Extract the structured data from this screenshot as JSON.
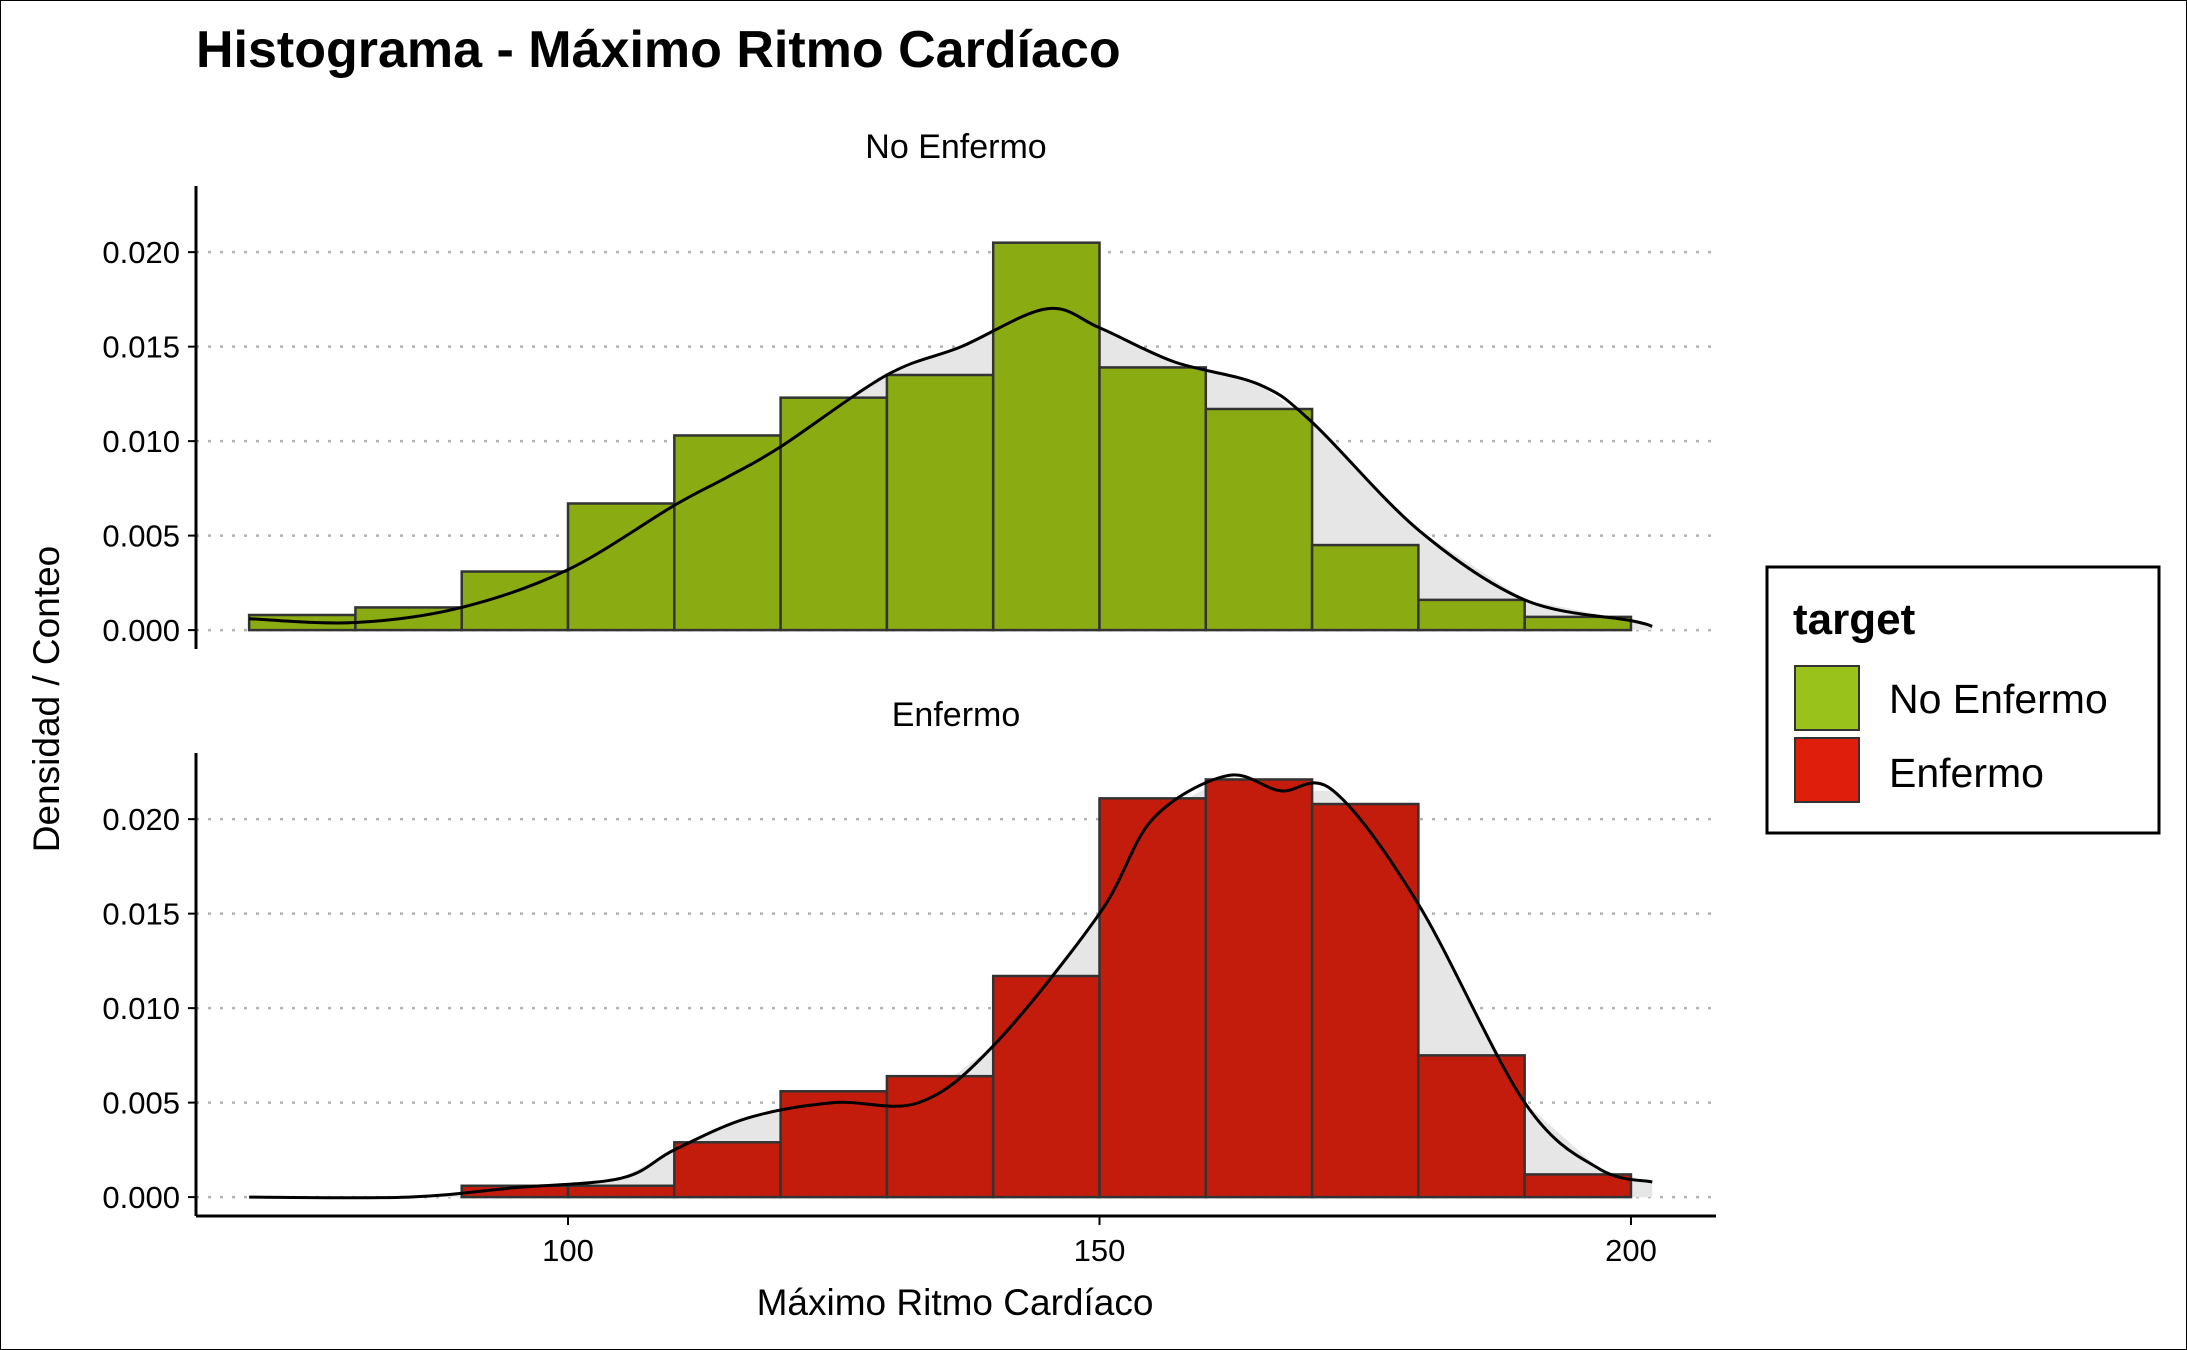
{
  "chart_data": {
    "type": "bar",
    "title": "Histograma - Máximo Ritmo Cardíaco",
    "xlabel": "Máximo Ritmo Cardíaco",
    "ylabel": "Densidad / Conteo",
    "xlim": [
      65,
      208
    ],
    "ylim": [
      -0.001,
      0.0235
    ],
    "x_ticks": [
      100,
      150,
      200
    ],
    "y_ticks": [
      "0.000",
      "0.005",
      "0.010",
      "0.015",
      "0.020"
    ],
    "grid": "horizontal dotted",
    "bin_width": 10,
    "bin_starts": [
      70,
      80,
      90,
      100,
      110,
      120,
      130,
      140,
      150,
      160,
      170,
      180,
      190
    ],
    "legend": {
      "title": "target",
      "position": "right",
      "entries": [
        {
          "label": "No Enfermo",
          "color": "#99c21a"
        },
        {
          "label": "Enfermo",
          "color": "#e01e0c"
        }
      ]
    },
    "series": [
      {
        "name": "No Enfermo",
        "fill": "#8aab12",
        "values": [
          0.0008,
          0.0012,
          0.0031,
          0.0067,
          0.0103,
          0.0123,
          0.0135,
          0.0205,
          0.0139,
          0.0117,
          0.0045,
          0.0016,
          0.0007
        ],
        "density": [
          [
            70,
            0.0006
          ],
          [
            80,
            0.0004
          ],
          [
            90,
            0.0012
          ],
          [
            100,
            0.0032
          ],
          [
            110,
            0.0066
          ],
          [
            115,
            0.0081
          ],
          [
            120,
            0.0097
          ],
          [
            130,
            0.0135
          ],
          [
            137,
            0.015
          ],
          [
            145,
            0.017
          ],
          [
            150,
            0.016
          ],
          [
            157,
            0.0142
          ],
          [
            165,
            0.013
          ],
          [
            170,
            0.011
          ],
          [
            180,
            0.0053
          ],
          [
            190,
            0.0016
          ],
          [
            200,
            0.0005
          ],
          [
            202,
            0.0002
          ]
        ]
      },
      {
        "name": "Enfermo",
        "fill": "#c41c0c",
        "values": [
          0,
          0,
          0.0006,
          0.0006,
          0.0029,
          0.0056,
          0.0064,
          0.0117,
          0.0211,
          0.0221,
          0.0208,
          0.0075,
          0.0012
        ],
        "density": [
          [
            70,
            0.0
          ],
          [
            85,
            0.0
          ],
          [
            95,
            0.0005
          ],
          [
            105,
            0.001
          ],
          [
            110,
            0.0025
          ],
          [
            117,
            0.0042
          ],
          [
            125,
            0.005
          ],
          [
            133,
            0.005
          ],
          [
            140,
            0.008
          ],
          [
            150,
            0.015
          ],
          [
            155,
            0.02
          ],
          [
            162,
            0.0223
          ],
          [
            167,
            0.0215
          ],
          [
            172,
            0.0215
          ],
          [
            180,
            0.0155
          ],
          [
            190,
            0.005
          ],
          [
            197,
            0.0015
          ],
          [
            202,
            0.0008
          ]
        ]
      }
    ],
    "panels": [
      {
        "strip": "No Enfermo",
        "series": "No Enfermo"
      },
      {
        "strip": "Enfermo",
        "series": "Enfermo"
      }
    ]
  }
}
